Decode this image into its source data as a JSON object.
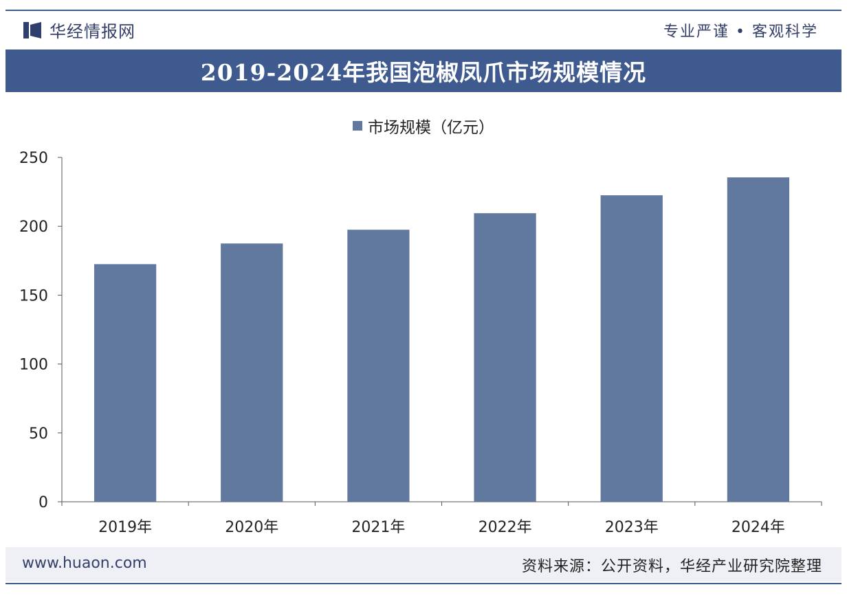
{
  "header": {
    "brand": "华经情报网",
    "slogan": "专业严谨 • 客观科学"
  },
  "colors": {
    "accent": "#3f5a8f",
    "bar": "#61789f"
  },
  "chart_data": {
    "type": "bar",
    "title": "2019-2024年我国泡椒凤爪市场规模情况",
    "categories": [
      "2019年",
      "2020年",
      "2021年",
      "2022年",
      "2023年",
      "2024年"
    ],
    "series": [
      {
        "name": "市场规模（亿元）",
        "values": [
          172.5,
          187.5,
          197.5,
          209.5,
          222.5,
          235.5
        ]
      }
    ],
    "ylim": [
      0,
      250
    ],
    "yticks": [
      0,
      50,
      100,
      150,
      200,
      250
    ],
    "legend_position": "top-center",
    "grid": false
  },
  "footer": {
    "url": "www.huaon.com",
    "source": "资料来源：公开资料，华经产业研究院整理"
  }
}
